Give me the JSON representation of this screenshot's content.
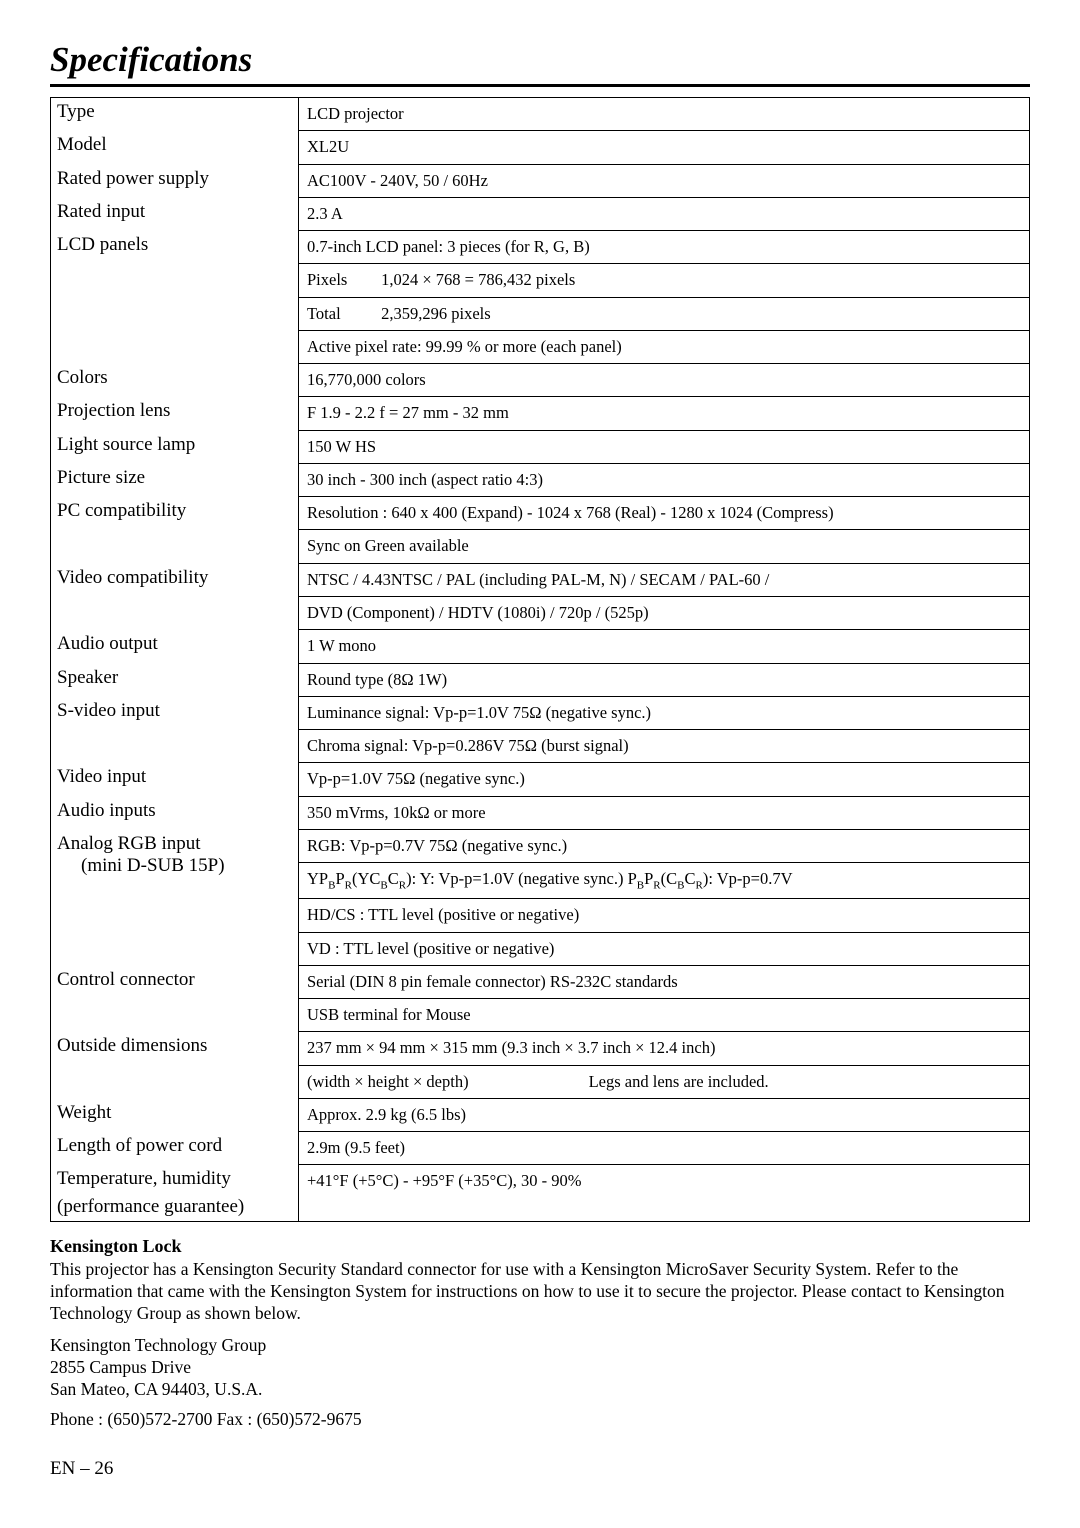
{
  "title": "Specifications",
  "rows": [
    {
      "label": "Type",
      "values": [
        "LCD projector"
      ]
    },
    {
      "label": "Model",
      "values": [
        "XL2U"
      ]
    },
    {
      "label": "Rated power supply",
      "values": [
        "AC100V - 240V,  50 / 60Hz"
      ]
    },
    {
      "label": "Rated input",
      "values": [
        "2.3 A"
      ]
    },
    {
      "label": "LCD panels",
      "values": [
        "0.7-inch LCD panel: 3 pieces (for R, G, B)",
        {
          "pixels_label": "Pixels",
          "pixels_value": "1,024 ×   768 = 786,432 pixels"
        },
        {
          "pixels_label": "Total",
          "pixels_value": "2,359,296 pixels"
        },
        "Active pixel rate: 99.99 % or more (each panel)"
      ]
    },
    {
      "label": "Colors",
      "values": [
        "16,770,000 colors"
      ]
    },
    {
      "label": "Projection lens",
      "values": [
        "F 1.9 - 2.2     f = 27 mm - 32 mm"
      ]
    },
    {
      "label": "Light source lamp",
      "values": [
        "150 W HS"
      ]
    },
    {
      "label": "Picture size",
      "values": [
        "30 inch - 300 inch (aspect ratio 4:3)"
      ]
    },
    {
      "label": "PC compatibility",
      "values": [
        "Resolution : 640 x 400 (Expand) - 1024 x 768 (Real) - 1280 x 1024 (Compress)",
        "Sync on Green available"
      ]
    },
    {
      "label": "Video compatibility",
      "values": [
        "NTSC / 4.43NTSC / PAL (including PAL-M, N) / SECAM / PAL-60 /",
        "DVD (Component) / HDTV (1080i)  / 720p / (525p)"
      ]
    },
    {
      "label": "Audio output",
      "values": [
        "1 W  mono"
      ]
    },
    {
      "label": "Speaker",
      "values": [
        "Round type  (8Ω 1W)"
      ]
    },
    {
      "label": "S-video input",
      "values": [
        "Luminance signal: Vp-p=1.0V  75Ω    (negative sync.)",
        "Chroma signal: Vp-p=0.286V 75Ω  (burst signal)"
      ]
    },
    {
      "label": "Video input",
      "values": [
        "Vp-p=1.0V  75Ω   (negative sync.)"
      ]
    },
    {
      "label": "Audio inputs",
      "values": [
        "350 mVrms,  10kΩ or more"
      ]
    },
    {
      "label": "Analog RGB input",
      "label2": "(mini D-SUB 15P)",
      "values": [
        "RGB: Vp-p=0.7V  75Ω (negative sync.)",
        {
          "ypbpr": true
        },
        "HD/CS : TTL level (positive or negative)",
        "VD : TTL level (positive or negative)"
      ]
    },
    {
      "label": "Control connector",
      "values": [
        "Serial (DIN 8 pin female connector) RS-232C standards",
        "USB terminal for Mouse"
      ]
    },
    {
      "label": "Outside dimensions",
      "values": [
        "237 mm × 94 mm  × 315 mm (9.3 inch × 3.7 inch × 12.4 inch)",
        {
          "dims_line": true,
          "left": "(width × height × depth)",
          "right": "Legs and lens are included."
        }
      ]
    },
    {
      "label": "Weight",
      "values": [
        "Approx. 2.9 kg (6.5 lbs)"
      ]
    },
    {
      "label": "Length of power cord",
      "values": [
        "2.9m (9.5 feet)"
      ]
    },
    {
      "label": "Temperature, humidity",
      "label2b": "(performance guarantee)",
      "values": [
        "+41°F (+5°C) - +95°F (+35°C),  30 - 90%"
      ],
      "last": true
    }
  ],
  "kensington": {
    "head": "Kensington Lock",
    "body": "This projector has a Kensington Security Standard connector for use with a Kensington MicroSaver Security System. Refer to the information that came with the Kensington System for instructions on how to use it to secure the projector. Please contact to Kensington Technology Group as shown below.",
    "addr1": "Kensington Technology Group",
    "addr2": "2855 Campus Drive",
    "addr3": "San Mateo, CA 94403, U.S.A.",
    "phone": "Phone : (650)572-2700    Fax : (650)572-9675"
  },
  "ypbpr_text": {
    "a": "YP",
    "b": "B",
    "c": "P",
    "d": "R",
    "e": "(YC",
    "f": "B",
    "g": "C",
    "h": "R",
    "i": "):  Y: Vp-p=1.0V (negative sync.)    P",
    "j": "B",
    "k": "P",
    "l": "R",
    "m": "(C",
    "n": "B",
    "o": "C",
    "p": "R",
    "q": "): Vp-p=0.7V"
  },
  "page": "EN – 26"
}
